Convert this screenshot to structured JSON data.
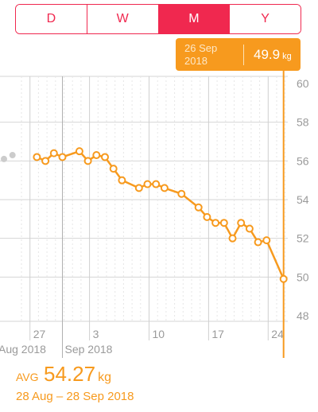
{
  "segments": [
    {
      "label": "D",
      "active": false
    },
    {
      "label": "W",
      "active": false
    },
    {
      "label": "M",
      "active": true
    },
    {
      "label": "Y",
      "active": false
    }
  ],
  "tooltip": {
    "date_line1": "26 Sep",
    "date_line2": "2018",
    "value": "49.9",
    "unit": "kg"
  },
  "summary": {
    "avg_label": "AVG",
    "avg_value": "54.27",
    "avg_unit": "kg",
    "range": "28 Aug – 28 Sep 2018"
  },
  "colors": {
    "accent": "#f0284f",
    "line": "#f79a1e",
    "grid": "#d6d6d6",
    "axis_text": "#9a9a9a",
    "prior_point": "#cccccc"
  },
  "chart_data": {
    "type": "line",
    "ylim": [
      48,
      60
    ],
    "y_ticks": [
      "48",
      "50",
      "52",
      "54",
      "56",
      "58",
      "60"
    ],
    "x_ticks": [
      {
        "label": "27",
        "day": 27
      },
      {
        "label": "3",
        "day": 34
      },
      {
        "label": "10",
        "day": 41
      },
      {
        "label": "17",
        "day": 48
      },
      {
        "label": "24",
        "day": 55
      }
    ],
    "month_labels": [
      {
        "label": "Aug 2018",
        "day": 26
      },
      {
        "label": "Sep 2018",
        "day": 31
      }
    ],
    "selected_day": 57,
    "prior_points": [
      {
        "day": 26,
        "y": 56.1
      },
      {
        "day": 27,
        "y": 56.3
      }
    ],
    "series": [
      {
        "points": [
          {
            "day": 28,
            "y": 56.2
          },
          {
            "day": 29,
            "y": 56.0
          },
          {
            "day": 30,
            "y": 56.4
          },
          {
            "day": 31,
            "y": 56.2
          },
          {
            "day": 33,
            "y": 56.5
          },
          {
            "day": 34,
            "y": 56.0
          },
          {
            "day": 35,
            "y": 56.3
          },
          {
            "day": 36,
            "y": 56.2
          },
          {
            "day": 37,
            "y": 55.6
          },
          {
            "day": 38,
            "y": 55.0
          },
          {
            "day": 40,
            "y": 54.6
          },
          {
            "day": 41,
            "y": 54.8
          },
          {
            "day": 42,
            "y": 54.8
          },
          {
            "day": 43,
            "y": 54.6
          },
          {
            "day": 45,
            "y": 54.3
          },
          {
            "day": 47,
            "y": 53.6
          },
          {
            "day": 48,
            "y": 53.1
          },
          {
            "day": 49,
            "y": 52.8
          },
          {
            "day": 50,
            "y": 52.8
          },
          {
            "day": 51,
            "y": 52.0
          },
          {
            "day": 52,
            "y": 52.8
          },
          {
            "day": 53,
            "y": 52.5
          },
          {
            "day": 54,
            "y": 51.8
          },
          {
            "day": 55,
            "y": 51.9
          },
          {
            "day": 57,
            "y": 49.9
          }
        ]
      }
    ]
  }
}
